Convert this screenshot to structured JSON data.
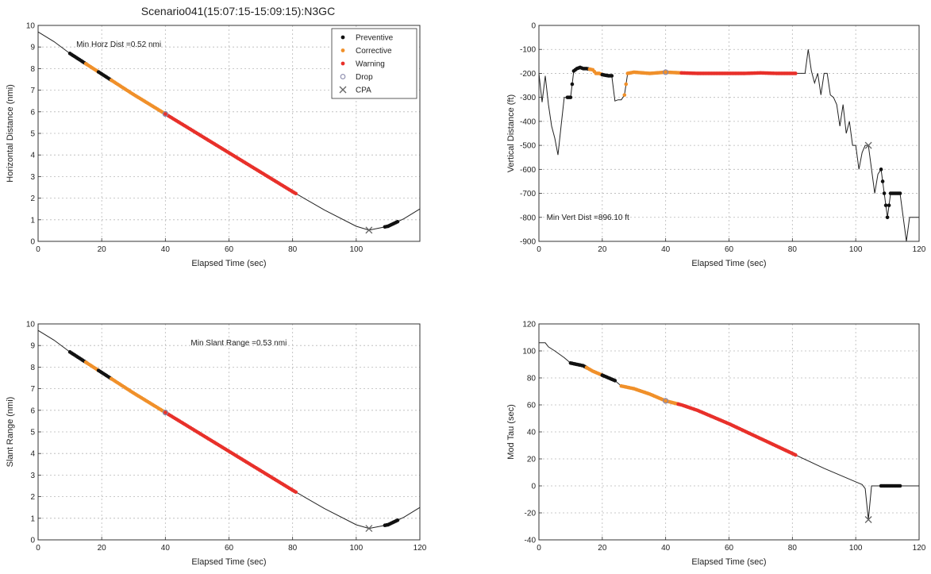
{
  "figure": {
    "title": "Scenario041(15:07:15-15:09:15):N3GC"
  },
  "colors": {
    "preventive": "#111111",
    "corrective": "#f0902a",
    "warning": "#e8302a",
    "drop": "#8888aa",
    "cpa": "#666666",
    "line": "#222222",
    "grid": "#b8b8b8"
  },
  "legend": [
    {
      "label": "Preventive",
      "marker": "dot",
      "color": "#111111"
    },
    {
      "label": "Corrective",
      "marker": "dot",
      "color": "#f0902a"
    },
    {
      "label": "Warning",
      "marker": "dot",
      "color": "#e8302a"
    },
    {
      "label": "Drop",
      "marker": "circle",
      "color": "#8888aa"
    },
    {
      "label": "CPA",
      "marker": "x",
      "color": "#666666"
    }
  ],
  "chart_data": [
    {
      "id": "horizontal",
      "type": "line",
      "title": "",
      "xlabel": "Elapsed Time (sec)",
      "ylabel": "Horizontal Distance (nmi)",
      "xlim": [
        0,
        120
      ],
      "ylim": [
        0,
        10
      ],
      "xticks": [
        0,
        20,
        40,
        60,
        80,
        100
      ],
      "yticks": [
        0,
        1,
        2,
        3,
        4,
        5,
        6,
        7,
        8,
        9,
        10
      ],
      "grid": true,
      "legend": "top-right",
      "annotation": "Min Horz Dist =0.52 nmi",
      "line": {
        "x": [
          0,
          5,
          10,
          20,
          30,
          40,
          50,
          60,
          70,
          80,
          90,
          100,
          104,
          110,
          115,
          120
        ],
        "y": [
          9.7,
          9.25,
          8.7,
          7.75,
          6.8,
          5.9,
          5.0,
          4.1,
          3.2,
          2.3,
          1.45,
          0.7,
          0.52,
          0.7,
          1.05,
          1.5
        ]
      },
      "segments": [
        {
          "kind": "preventive",
          "x0": 10,
          "x1": 15
        },
        {
          "kind": "corrective",
          "x0": 15,
          "x1": 19
        },
        {
          "kind": "preventive",
          "x0": 19,
          "x1": 23
        },
        {
          "kind": "corrective",
          "x0": 23,
          "x1": 40
        },
        {
          "kind": "warning",
          "x0": 40,
          "x1": 81
        },
        {
          "kind": "preventive",
          "x0": 109,
          "x1": 113
        }
      ],
      "drop": {
        "x": 40,
        "y": 5.9
      },
      "cpa": {
        "x": 104,
        "y": 0.52
      }
    },
    {
      "id": "vertical",
      "type": "line",
      "title": "",
      "xlabel": "Elapsed Time (sec)",
      "ylabel": "Vertical Distance (ft)",
      "xlim": [
        0,
        120
      ],
      "ylim": [
        -900,
        0
      ],
      "xticks": [
        0,
        20,
        40,
        60,
        80,
        100,
        120
      ],
      "yticks": [
        0,
        -100,
        -200,
        -300,
        -400,
        -500,
        -600,
        -700,
        -800,
        -900
      ],
      "grid": true,
      "legend": "none",
      "annotation": "Min Vert Dist =896.10 ft",
      "line": {
        "x": [
          0,
          1,
          2,
          3,
          4,
          5,
          6,
          7,
          8,
          9,
          10,
          11,
          12,
          13,
          14,
          15,
          17,
          18,
          19,
          20,
          21,
          22,
          23,
          24,
          25,
          26,
          27,
          28,
          30,
          35,
          40,
          45,
          50,
          55,
          60,
          65,
          70,
          75,
          80,
          82,
          84,
          85,
          86,
          87,
          88,
          89,
          90,
          91,
          92,
          93,
          94,
          95,
          96,
          97,
          98,
          99,
          100,
          101,
          102,
          103,
          104,
          105,
          106,
          107,
          108,
          109,
          110,
          111,
          112,
          113,
          114,
          115,
          116,
          117,
          118,
          120
        ],
        "y": [
          -200,
          -320,
          -210,
          -330,
          -420,
          -470,
          -540,
          -420,
          -300,
          -300,
          -300,
          -190,
          -180,
          -175,
          -180,
          -180,
          -185,
          -200,
          -200,
          -205,
          -208,
          -210,
          -210,
          -315,
          -310,
          -310,
          -290,
          -200,
          -195,
          -200,
          -195,
          -198,
          -200,
          -200,
          -200,
          -200,
          -198,
          -200,
          -200,
          -200,
          -200,
          -100,
          -190,
          -240,
          -200,
          -290,
          -200,
          -200,
          -290,
          -300,
          -330,
          -420,
          -330,
          -450,
          -400,
          -500,
          -500,
          -600,
          -530,
          -500,
          -500,
          -600,
          -700,
          -620,
          -600,
          -700,
          -800,
          -700,
          -700,
          -700,
          -700,
          -800,
          -900,
          -800,
          -800,
          -800
        ]
      },
      "segments": [
        {
          "kind": "preventive",
          "x0": 9,
          "x1": 16
        },
        {
          "kind": "corrective",
          "x0": 16,
          "x1": 20
        },
        {
          "kind": "preventive",
          "x0": 20,
          "x1": 23
        },
        {
          "kind": "corrective",
          "x0": 27,
          "x1": 45
        },
        {
          "kind": "warning",
          "x0": 45,
          "x1": 81
        },
        {
          "kind": "preventive",
          "x0": 108,
          "x1": 114
        }
      ],
      "drop": {
        "x": 40,
        "y": -195
      },
      "cpa": {
        "x": 104,
        "y": -500
      }
    },
    {
      "id": "slant",
      "type": "line",
      "title": "",
      "xlabel": "Elapsed Time (sec)",
      "ylabel": "Slant Range (nmi)",
      "xlim": [
        0,
        120
      ],
      "ylim": [
        0,
        10
      ],
      "xticks": [
        0,
        20,
        40,
        60,
        80,
        100,
        120
      ],
      "yticks": [
        0,
        1,
        2,
        3,
        4,
        5,
        6,
        7,
        8,
        9,
        10
      ],
      "grid": true,
      "legend": "none",
      "annotation": "Min Slant Range =0.53 nmi",
      "line": {
        "x": [
          0,
          5,
          10,
          20,
          30,
          40,
          50,
          60,
          70,
          80,
          90,
          100,
          104,
          110,
          115,
          120
        ],
        "y": [
          9.7,
          9.25,
          8.7,
          7.75,
          6.8,
          5.9,
          5.0,
          4.1,
          3.2,
          2.3,
          1.45,
          0.7,
          0.53,
          0.7,
          1.05,
          1.5
        ]
      },
      "segments": [
        {
          "kind": "preventive",
          "x0": 10,
          "x1": 15
        },
        {
          "kind": "corrective",
          "x0": 15,
          "x1": 19
        },
        {
          "kind": "preventive",
          "x0": 19,
          "x1": 23
        },
        {
          "kind": "corrective",
          "x0": 23,
          "x1": 40
        },
        {
          "kind": "warning",
          "x0": 40,
          "x1": 81
        },
        {
          "kind": "preventive",
          "x0": 109,
          "x1": 113
        }
      ],
      "drop": {
        "x": 40,
        "y": 5.9
      },
      "cpa": {
        "x": 104,
        "y": 0.53
      }
    },
    {
      "id": "tau",
      "type": "line",
      "title": "",
      "xlabel": "Elapsed Time (sec)",
      "ylabel": "Mod Tau (sec)",
      "xlim": [
        0,
        120
      ],
      "ylim": [
        -40,
        120
      ],
      "xticks": [
        0,
        20,
        40,
        60,
        80,
        100,
        120
      ],
      "yticks": [
        120,
        100,
        80,
        60,
        40,
        20,
        0,
        -20,
        -40
      ],
      "grid": true,
      "legend": "none",
      "annotation": "",
      "line": {
        "x": [
          0,
          2,
          3,
          5,
          8,
          10,
          14,
          17,
          20,
          24,
          26,
          28,
          30,
          35,
          40,
          45,
          50,
          60,
          70,
          80,
          90,
          100,
          102,
          103,
          104,
          105,
          106,
          110,
          115,
          120
        ],
        "y": [
          106,
          106,
          103,
          100,
          95,
          91,
          89,
          85,
          82,
          78,
          74,
          73,
          72,
          68,
          63,
          60,
          56,
          46,
          35,
          24,
          13,
          3,
          1,
          -2,
          -25,
          0,
          0,
          0,
          0,
          0
        ]
      },
      "segments": [
        {
          "kind": "preventive",
          "x0": 10,
          "x1": 15
        },
        {
          "kind": "corrective",
          "x0": 15,
          "x1": 20
        },
        {
          "kind": "preventive",
          "x0": 20,
          "x1": 24
        },
        {
          "kind": "corrective",
          "x0": 26,
          "x1": 44
        },
        {
          "kind": "warning",
          "x0": 44,
          "x1": 81
        },
        {
          "kind": "preventive",
          "x0": 108,
          "x1": 114
        }
      ],
      "drop": {
        "x": 40,
        "y": 63
      },
      "cpa": {
        "x": 104,
        "y": -25
      }
    }
  ]
}
